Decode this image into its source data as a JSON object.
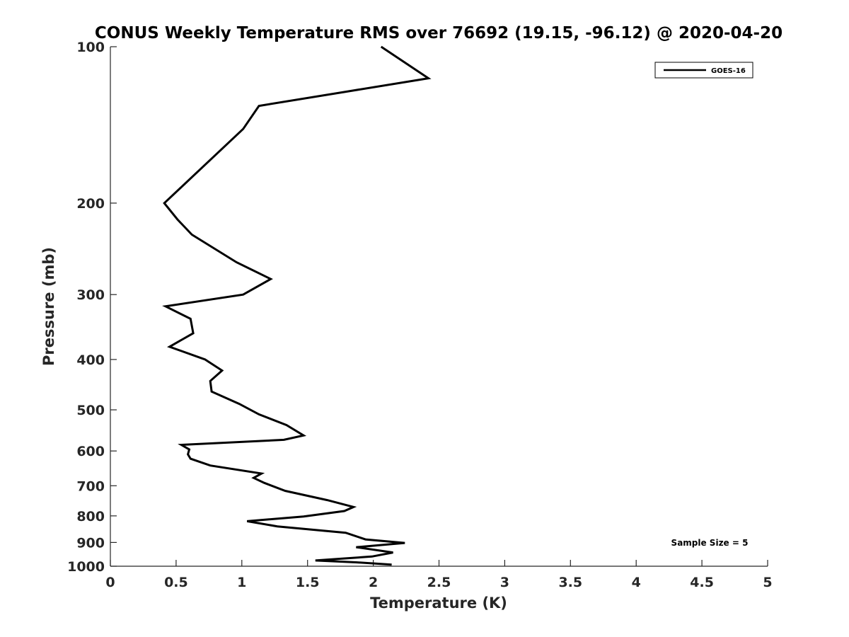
{
  "chart_data": {
    "type": "line",
    "title": "CONUS Weekly Temperature RMS over 76692 (19.15, -96.12) @ 2020-04-20",
    "xlabel": "Temperature (K)",
    "ylabel": "Pressure (mb)",
    "xlim": [
      0,
      5
    ],
    "ylim": [
      100,
      1000
    ],
    "y_scale": "log",
    "y_reversed": true,
    "grid": false,
    "legend_position": "top-right",
    "xticks": [
      0,
      0.5,
      1,
      1.5,
      2,
      2.5,
      3,
      3.5,
      4,
      4.5,
      5
    ],
    "xtick_labels": [
      "0",
      "0.5",
      "1",
      "1.5",
      "2",
      "2.5",
      "3",
      "3.5",
      "4",
      "4.5",
      "5"
    ],
    "yticks": [
      100,
      200,
      300,
      400,
      500,
      600,
      700,
      800,
      900,
      1000
    ],
    "ytick_labels": [
      "100",
      "200",
      "300",
      "400",
      "500",
      "600",
      "700",
      "800",
      "900",
      "1000"
    ],
    "annotation": "Sample Size = 5",
    "line_color": "#000000",
    "series": [
      {
        "name": "GOES-16",
        "points": [
          [
            2.06,
            100
          ],
          [
            2.42,
            115
          ],
          [
            1.13,
            130
          ],
          [
            1.01,
            144
          ],
          [
            0.41,
            200
          ],
          [
            0.51,
            215
          ],
          [
            0.62,
            230
          ],
          [
            0.96,
            260
          ],
          [
            1.22,
            280
          ],
          [
            1.01,
            300
          ],
          [
            0.42,
            316
          ],
          [
            0.61,
            334
          ],
          [
            0.63,
            356
          ],
          [
            0.45,
            378
          ],
          [
            0.72,
            400
          ],
          [
            0.85,
            420
          ],
          [
            0.76,
            440
          ],
          [
            0.77,
            461
          ],
          [
            0.98,
            487
          ],
          [
            1.13,
            510
          ],
          [
            1.34,
            535
          ],
          [
            1.47,
            560
          ],
          [
            1.32,
            571
          ],
          [
            0.54,
            584
          ],
          [
            0.6,
            596
          ],
          [
            0.59,
            609
          ],
          [
            0.61,
            621
          ],
          [
            0.76,
            640
          ],
          [
            1.15,
            663
          ],
          [
            1.09,
            676
          ],
          [
            1.17,
            691
          ],
          [
            1.33,
            716
          ],
          [
            1.65,
            746
          ],
          [
            1.85,
            769
          ],
          [
            1.78,
            783
          ],
          [
            1.47,
            802
          ],
          [
            1.04,
            819
          ],
          [
            1.27,
            838
          ],
          [
            1.79,
            862
          ],
          [
            1.94,
            888
          ],
          [
            2.24,
            902
          ],
          [
            1.87,
            919
          ],
          [
            2.15,
            941
          ],
          [
            1.99,
            958
          ],
          [
            1.56,
            975
          ],
          [
            1.87,
            983
          ],
          [
            2.14,
            993
          ]
        ]
      }
    ]
  }
}
